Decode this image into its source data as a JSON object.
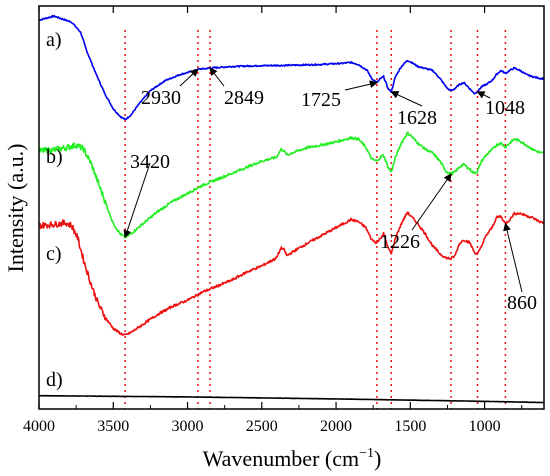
{
  "chart_data": {
    "type": "line",
    "xlabel": "Wavenumber (cm",
    "xlabel_sup": "−1",
    "xlabel_end": ")",
    "ylabel": "Intensity (a.u.)",
    "xlim": [
      4000,
      600
    ],
    "x_reversed": true,
    "xticks": [
      4000,
      3500,
      3000,
      2500,
      2000,
      1500,
      1000
    ],
    "yticks_shown": false,
    "grid": false,
    "colors": {
      "a": "#0000ee",
      "b": "#22ee22",
      "c": "#ee1111",
      "d": "#000000",
      "refline": "#ee1111"
    },
    "reference_lines": [
      3420,
      2930,
      2849,
      1725,
      1628,
      1226,
      1048,
      860
    ],
    "series": [
      {
        "label": "a)",
        "color": "#0000ee",
        "x": [
          4000,
          3900,
          3780,
          3720,
          3680,
          3620,
          3560,
          3500,
          3450,
          3420,
          3380,
          3320,
          3250,
          3150,
          3050,
          2950,
          2930,
          2870,
          2849,
          2700,
          2500,
          2300,
          2100,
          1950,
          1900,
          1850,
          1790,
          1760,
          1725,
          1700,
          1680,
          1650,
          1628,
          1600,
          1560,
          1520,
          1500,
          1450,
          1400,
          1350,
          1300,
          1250,
          1226,
          1200,
          1170,
          1140,
          1100,
          1070,
          1048,
          1020,
          990,
          950,
          920,
          890,
          860,
          830,
          800,
          760,
          720,
          680,
          620
        ],
        "y": [
          96.5,
          97.5,
          96,
          93.5,
          89,
          83.5,
          78.5,
          74.5,
          72.5,
          71.8,
          73,
          76,
          79,
          81.5,
          83,
          84,
          84.3,
          84.5,
          84.6,
          85,
          85.2,
          85.3,
          85.5,
          85.8,
          86,
          85.5,
          84,
          82,
          81,
          82,
          82.5,
          79.5,
          78.7,
          82.5,
          85,
          86.5,
          86.2,
          85,
          84.5,
          84,
          82,
          79.5,
          79,
          79.5,
          80.5,
          81,
          79.5,
          78.3,
          78.7,
          80,
          80.5,
          81.5,
          83,
          84,
          83.3,
          84,
          84.6,
          84,
          83,
          82.5,
          82
        ]
      },
      {
        "label": "b)",
        "color": "#22ee22",
        "x": [
          4000,
          3900,
          3800,
          3750,
          3700,
          3650,
          3600,
          3550,
          3500,
          3450,
          3420,
          3380,
          3300,
          3200,
          3100,
          3000,
          2900,
          2800,
          2700,
          2600,
          2500,
          2400,
          2370,
          2350,
          2330,
          2300,
          2200,
          2100,
          2000,
          1950,
          1900,
          1850,
          1800,
          1760,
          1725,
          1700,
          1680,
          1650,
          1628,
          1600,
          1560,
          1520,
          1500,
          1450,
          1400,
          1350,
          1300,
          1260,
          1226,
          1200,
          1170,
          1140,
          1100,
          1070,
          1048,
          1020,
          990,
          950,
          920,
          890,
          860,
          830,
          800,
          760,
          720,
          680,
          620
        ],
        "y": [
          64,
          64.3,
          65,
          65.5,
          64.5,
          61,
          56,
          51,
          46,
          43.3,
          42.6,
          43.5,
          46,
          49,
          51.5,
          53.5,
          55.5,
          57,
          58.5,
          60,
          61.5,
          62.5,
          64.5,
          64,
          63,
          63.5,
          64.8,
          65.5,
          66.3,
          66.8,
          67.3,
          67,
          65,
          62,
          61.5,
          62.5,
          63,
          60,
          58.8,
          62.5,
          66,
          68.5,
          68,
          66,
          64.5,
          63.5,
          61.5,
          59,
          58.3,
          58.8,
          60,
          60.7,
          59.5,
          58.5,
          59,
          61.5,
          63,
          64.3,
          65.5,
          66,
          65,
          66,
          67,
          66.5,
          65.5,
          64.5,
          63.5
        ]
      },
      {
        "label": "c)",
        "color": "#ee1111",
        "x": [
          4000,
          3900,
          3820,
          3780,
          3740,
          3700,
          3650,
          3600,
          3550,
          3500,
          3450,
          3420,
          3380,
          3300,
          3200,
          3100,
          3000,
          2900,
          2800,
          2700,
          2600,
          2500,
          2400,
          2370,
          2350,
          2330,
          2300,
          2200,
          2100,
          2000,
          1950,
          1900,
          1850,
          1800,
          1760,
          1725,
          1700,
          1680,
          1650,
          1628,
          1600,
          1560,
          1520,
          1500,
          1450,
          1400,
          1350,
          1300,
          1260,
          1226,
          1200,
          1170,
          1140,
          1100,
          1070,
          1048,
          1020,
          990,
          950,
          920,
          890,
          860,
          830,
          800,
          760,
          720,
          680,
          620
        ],
        "y": [
          45.5,
          45.8,
          46.2,
          45.5,
          42.5,
          37,
          31,
          26,
          22.5,
          20,
          18.7,
          18.3,
          19,
          21,
          23.5,
          25.5,
          27,
          29,
          30.5,
          32,
          34,
          35.5,
          37.5,
          40,
          39.5,
          38,
          38.8,
          41,
          43,
          45,
          46,
          47,
          46.5,
          45,
          42,
          41.2,
          42.5,
          43.5,
          40,
          38.5,
          42.5,
          46,
          48.8,
          48,
          46,
          43.5,
          40.5,
          38.5,
          37.5,
          37.3,
          38,
          41,
          42,
          41.3,
          39,
          38.3,
          40.5,
          43,
          45,
          47.5,
          47.8,
          46,
          47,
          48.5,
          48.5,
          48,
          47.5,
          46.3
        ]
      },
      {
        "label": "d)",
        "color": "#000000",
        "x": [
          4000,
          3000,
          2000,
          1000,
          600
        ],
        "y": [
          3.3,
          3.0,
          2.5,
          1.9,
          1.6
        ]
      }
    ],
    "annotations": [
      {
        "text": "2930",
        "x": 2930,
        "y": 84.3
      },
      {
        "text": "2849",
        "x": 2849,
        "y": 84.6
      },
      {
        "text": "1725",
        "x": 1725,
        "y": 81
      },
      {
        "text": "1628",
        "x": 1628,
        "y": 78.7
      },
      {
        "text": "1048",
        "x": 1048,
        "y": 78.7
      },
      {
        "text": "3420",
        "x": 3420,
        "y": 42.6
      },
      {
        "text": "1226",
        "x": 1226,
        "y": 58.3
      },
      {
        "text": "860",
        "x": 860,
        "y": 46
      }
    ]
  }
}
